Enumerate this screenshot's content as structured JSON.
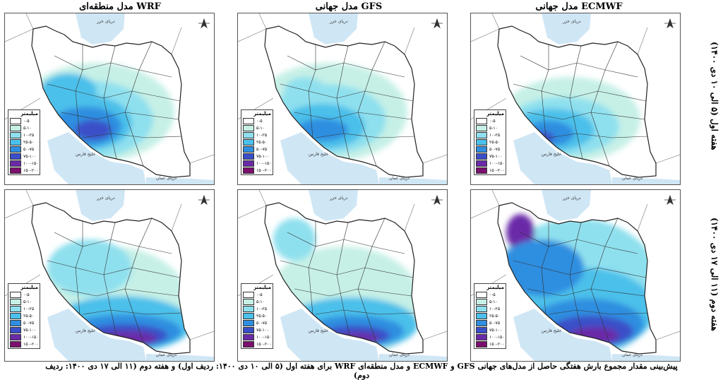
{
  "columns": [
    {
      "title": "مدل منطقه‌ای WRF"
    },
    {
      "title": "مدل جهانی GFS"
    },
    {
      "title": "مدل جهانی ECMWF"
    }
  ],
  "rows": [
    {
      "title": "هفته اول (۵ الی ۱۰ دی ۱۴۰۰)"
    },
    {
      "title": "هفته دوم (۱۱ الی ۱۷ دی ۱۴۰۰)"
    }
  ],
  "map_labels": {
    "caspian": "دریای خزر",
    "persian_gulf": "خلیج فارس",
    "oman_sea": "دریای عمان"
  },
  "legend": {
    "title": "میلیمتر",
    "classes": [
      {
        "label": "۰-۵",
        "color": "#ffffff"
      },
      {
        "label": "۵-۱۰",
        "color": "#c6f0e6"
      },
      {
        "label": "۱۰-۲۵",
        "color": "#8fe0ee"
      },
      {
        "label": "۲۵-۵۰",
        "color": "#4cc0ea"
      },
      {
        "label": "۵۰-۷۵",
        "color": "#2f8ee0"
      },
      {
        "label": "۷۵-۱۰۰",
        "color": "#3a4fc8"
      },
      {
        "label": "۱۰۰-۱۵۰",
        "color": "#6a2aa8"
      },
      {
        "label": "۱۵۰-۲۰۰",
        "color": "#7a0f6e"
      }
    ]
  },
  "caption": {
    "line1": "پیش‌بینی مقدار مجموع بارش هفتگی حاصل از مدل‌های جهانی GFS و ECMWF و مدل منطقه‌ای WRF برای هفته اول (۵ الی ۱۰ دی ۱۴۰۰: ردیف اول) و هفته دوم (۱۱ الی ۱۷ دی ۱۴۰۰: ردیف دوم)"
  },
  "colors": {
    "sea": "#cfe6f5",
    "land_out": "#ffffff",
    "border": "#222222"
  }
}
